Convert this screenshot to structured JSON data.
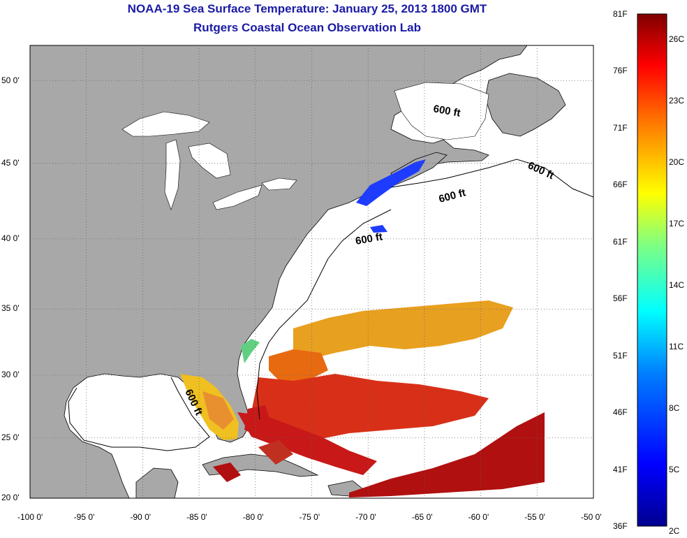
{
  "header": {
    "title": "NOAA-19 Sea Surface Temperature:  January 25, 2013 1800 GMT",
    "subtitle": "Rutgers Coastal Ocean Observation Lab"
  },
  "map": {
    "lon_range": [
      -100,
      -50
    ],
    "lat_range": [
      20,
      52
    ],
    "grid": true,
    "lon_ticks": [
      "-100 0'",
      "-95 0'",
      "-90 0'",
      "-85 0'",
      "-80 0'",
      "-75 0'",
      "-70 0'",
      "-65 0'",
      "-60 0'",
      "-55 0'",
      "-50 0'"
    ],
    "lat_ticks": [
      "50 0'",
      "45 0'",
      "40 0'",
      "35 0'",
      "30 0'",
      "25 0'",
      "20 0'"
    ],
    "isobath_label": "600 ft",
    "colors": {
      "land": "#a8a8a8",
      "ocean_nodata": "#ffffff",
      "coast": "#000000"
    }
  },
  "colorbar": {
    "fahrenheit_ticks": [
      "81F",
      "76F",
      "71F",
      "66F",
      "61F",
      "56F",
      "51F",
      "46F",
      "41F",
      "36F"
    ],
    "celsius_ticks": [
      "26C",
      "23C",
      "20C",
      "17C",
      "14C",
      "11C",
      "8C",
      "5C",
      "2C"
    ],
    "colors": [
      "#7f0000",
      "#ff0000",
      "#ff8000",
      "#ffff00",
      "#80ff80",
      "#00ffff",
      "#0080ff",
      "#0000ff",
      "#00008f"
    ]
  }
}
